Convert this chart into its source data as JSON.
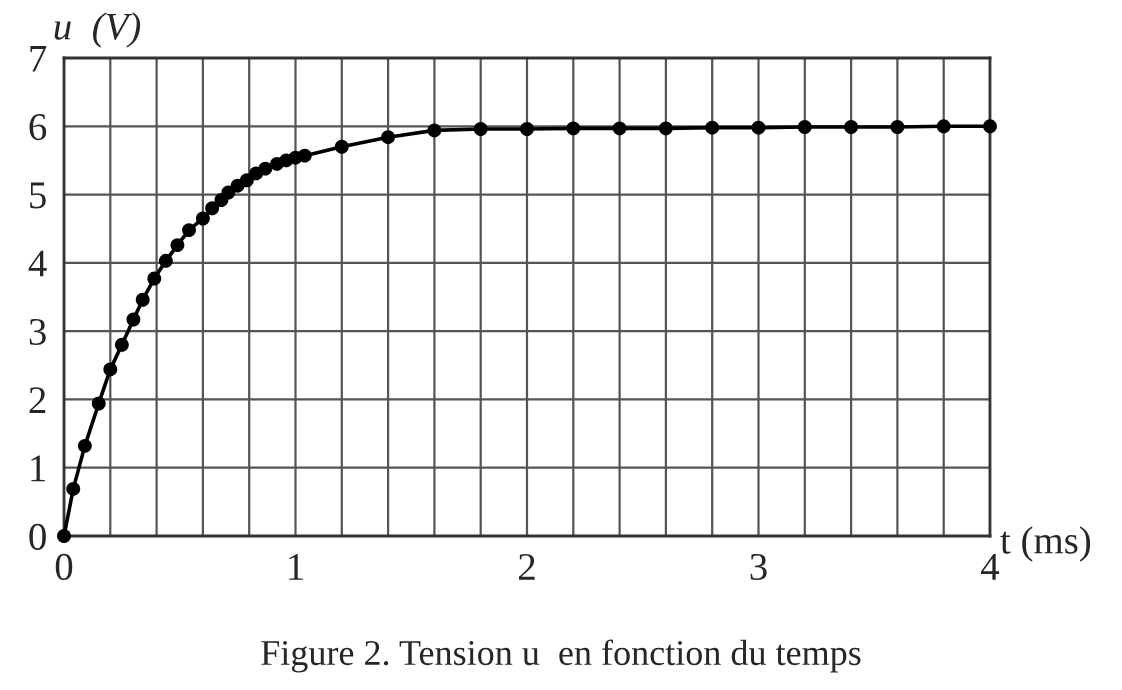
{
  "chart_data": {
    "type": "line",
    "title": "Figure 2. Tension u  en fonction du temps",
    "xlabel": "t (ms)",
    "ylabel": "u  (V)",
    "series": [
      {
        "color": "#000000",
        "x": [
          0,
          0.04,
          0.09,
          0.15,
          0.2,
          0.25,
          0.3,
          0.34,
          0.39,
          0.44,
          0.49,
          0.54,
          0.6,
          0.64,
          0.68,
          0.71,
          0.75,
          0.79,
          0.83,
          0.87,
          0.92,
          0.96,
          1.0,
          1.04,
          1.2,
          1.4,
          1.6,
          1.8,
          2.0,
          2.2,
          2.4,
          2.6,
          2.8,
          3.0,
          3.2,
          3.4,
          3.6,
          3.8,
          4.0
        ],
        "values": [
          0,
          0.69,
          1.32,
          1.94,
          2.44,
          2.8,
          3.17,
          3.46,
          3.77,
          4.03,
          4.26,
          4.48,
          4.65,
          4.8,
          4.92,
          5.03,
          5.13,
          5.21,
          5.31,
          5.38,
          5.45,
          5.5,
          5.54,
          5.57,
          5.7,
          5.84,
          5.94,
          5.96,
          5.96,
          5.97,
          5.97,
          5.97,
          5.98,
          5.98,
          5.99,
          5.99,
          5.99,
          6.0,
          6.0
        ]
      }
    ],
    "xlim": [
      0,
      4
    ],
    "ylim": [
      0,
      7
    ],
    "xticks": [
      0,
      1,
      2,
      3,
      4
    ],
    "yticks": [
      0,
      1,
      2,
      3,
      4,
      5,
      6,
      7
    ],
    "grid": true,
    "marker": "circle",
    "line_style": "solid"
  }
}
